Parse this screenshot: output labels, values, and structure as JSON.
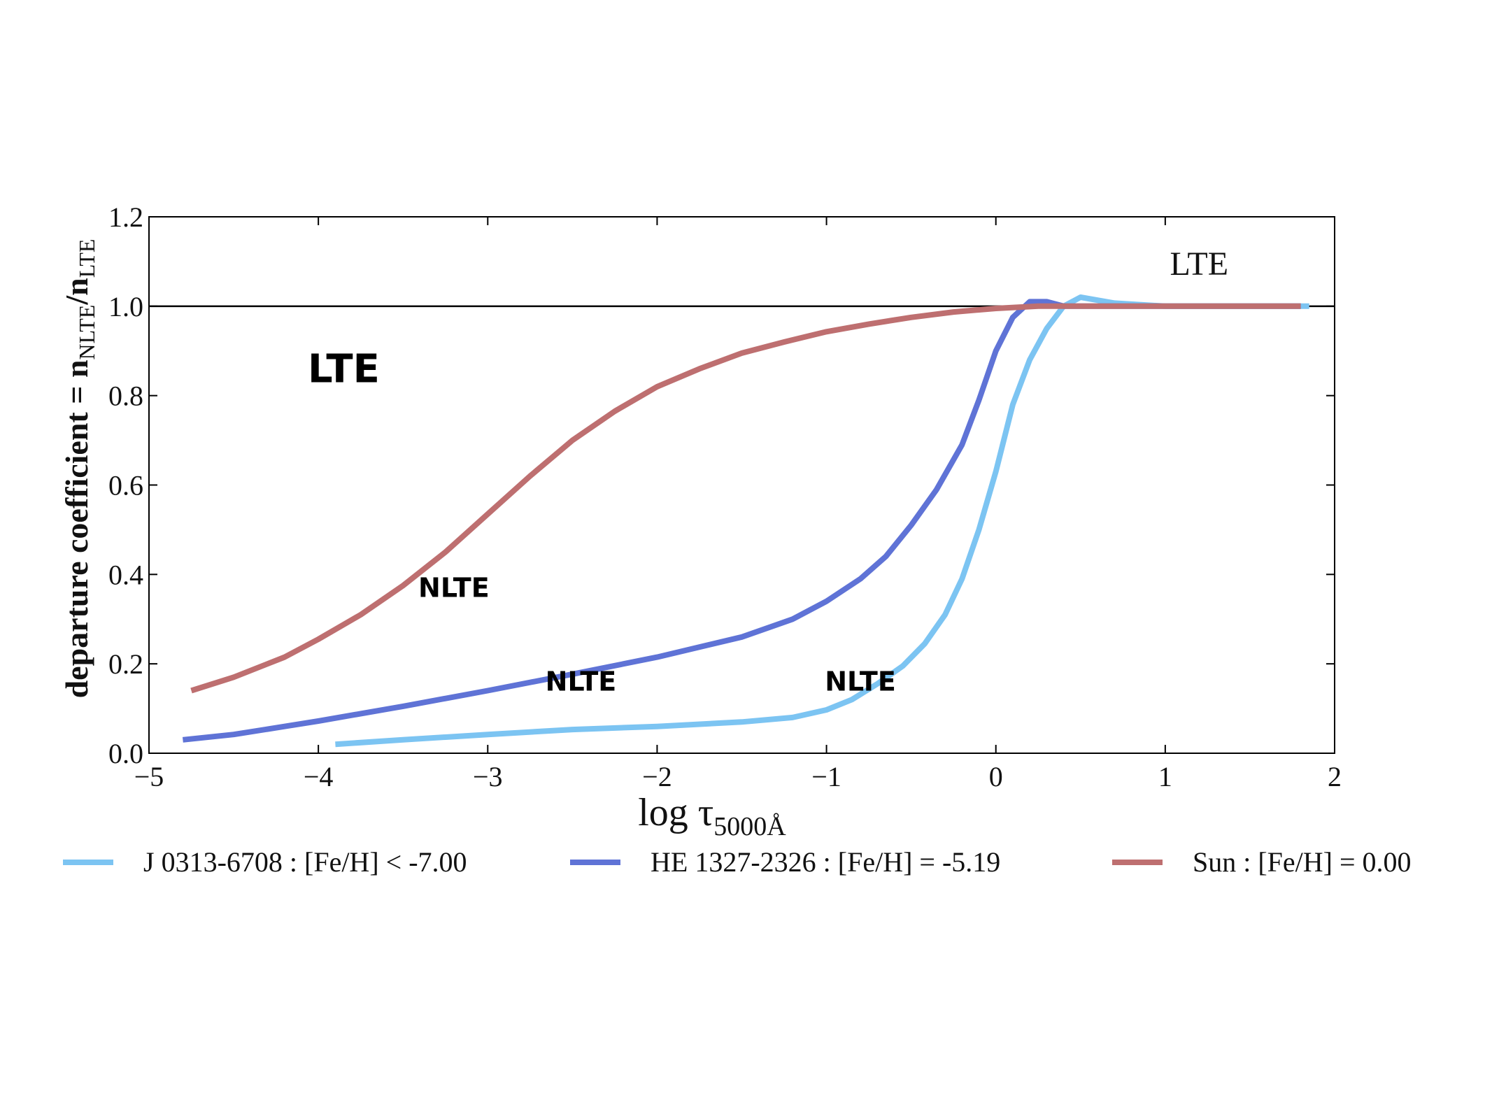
{
  "chart_data": {
    "type": "line",
    "xlabel": "log τ",
    "xlabel_sub": "5000Å",
    "ylabel_main": "departure coefficient = n",
    "ylabel_sub1": "NLTE",
    "ylabel_mid": "/n",
    "ylabel_sub2": "LTE",
    "xlim": [
      -5,
      2
    ],
    "ylim": [
      0.0,
      1.2
    ],
    "x_ticks": [
      -5,
      -4,
      -3,
      -2,
      -1,
      0,
      1,
      2
    ],
    "x_tick_labels": [
      "−5",
      "−4",
      "−3",
      "−2",
      "−1",
      "0",
      "1",
      "2"
    ],
    "y_ticks": [
      0.0,
      0.2,
      0.4,
      0.6,
      0.8,
      1.0,
      1.2
    ],
    "y_tick_labels": [
      "0.0",
      "0.2",
      "0.4",
      "0.6",
      "0.8",
      "1.0",
      "1.2"
    ],
    "grid": false,
    "reference_line": {
      "y": 1.0,
      "color": "#000000"
    },
    "legend_position": "bottom",
    "series": [
      {
        "name": "J 0313-6708 : [Fe/H] < -7.00",
        "color": "#7cc4f2",
        "points": [
          [
            -3.9,
            0.02
          ],
          [
            -3.5,
            0.03
          ],
          [
            -3.0,
            0.042
          ],
          [
            -2.5,
            0.053
          ],
          [
            -2.0,
            0.06
          ],
          [
            -1.5,
            0.07
          ],
          [
            -1.2,
            0.08
          ],
          [
            -1.0,
            0.097
          ],
          [
            -0.85,
            0.12
          ],
          [
            -0.7,
            0.155
          ],
          [
            -0.55,
            0.195
          ],
          [
            -0.42,
            0.245
          ],
          [
            -0.3,
            0.31
          ],
          [
            -0.2,
            0.39
          ],
          [
            -0.1,
            0.5
          ],
          [
            0.0,
            0.63
          ],
          [
            0.1,
            0.78
          ],
          [
            0.2,
            0.88
          ],
          [
            0.3,
            0.95
          ],
          [
            0.4,
            1.0
          ],
          [
            0.5,
            1.02
          ],
          [
            0.7,
            1.007
          ],
          [
            1.0,
            1.0
          ],
          [
            1.5,
            1.0
          ],
          [
            1.85,
            1.0
          ]
        ]
      },
      {
        "name": "HE 1327-2326 : [Fe/H] = -5.19",
        "color": "#5f73d6",
        "points": [
          [
            -4.8,
            0.03
          ],
          [
            -4.5,
            0.042
          ],
          [
            -4.2,
            0.06
          ],
          [
            -4.0,
            0.072
          ],
          [
            -3.5,
            0.105
          ],
          [
            -3.0,
            0.14
          ],
          [
            -2.5,
            0.177
          ],
          [
            -2.0,
            0.215
          ],
          [
            -1.5,
            0.26
          ],
          [
            -1.2,
            0.3
          ],
          [
            -1.0,
            0.34
          ],
          [
            -0.8,
            0.39
          ],
          [
            -0.65,
            0.44
          ],
          [
            -0.5,
            0.51
          ],
          [
            -0.35,
            0.59
          ],
          [
            -0.2,
            0.69
          ],
          [
            -0.1,
            0.79
          ],
          [
            0.0,
            0.9
          ],
          [
            0.1,
            0.975
          ],
          [
            0.2,
            1.01
          ],
          [
            0.3,
            1.01
          ],
          [
            0.4,
            1.0
          ],
          [
            0.7,
            1.0
          ],
          [
            1.2,
            1.0
          ],
          [
            1.8,
            1.0
          ]
        ]
      },
      {
        "name": "Sun : [Fe/H] = 0.00",
        "color": "#be6f70",
        "points": [
          [
            -4.75,
            0.14
          ],
          [
            -4.5,
            0.17
          ],
          [
            -4.2,
            0.215
          ],
          [
            -4.0,
            0.255
          ],
          [
            -3.75,
            0.31
          ],
          [
            -3.5,
            0.375
          ],
          [
            -3.25,
            0.45
          ],
          [
            -3.0,
            0.535
          ],
          [
            -2.75,
            0.62
          ],
          [
            -2.5,
            0.7
          ],
          [
            -2.25,
            0.765
          ],
          [
            -2.0,
            0.82
          ],
          [
            -1.75,
            0.86
          ],
          [
            -1.5,
            0.895
          ],
          [
            -1.25,
            0.92
          ],
          [
            -1.0,
            0.943
          ],
          [
            -0.75,
            0.96
          ],
          [
            -0.5,
            0.975
          ],
          [
            -0.25,
            0.987
          ],
          [
            0.0,
            0.995
          ],
          [
            0.25,
            1.0
          ],
          [
            0.5,
            1.0
          ],
          [
            1.0,
            1.0
          ],
          [
            1.5,
            1.0
          ],
          [
            1.8,
            1.0
          ]
        ]
      }
    ],
    "annotations": [
      {
        "text": "LTE",
        "x": -3.85,
        "y": 0.83,
        "style": "bold-large"
      },
      {
        "text": "NLTE",
        "x": -3.2,
        "y": 0.35,
        "style": "bold"
      },
      {
        "text": "NLTE",
        "x": -2.45,
        "y": 0.14,
        "style": "bold"
      },
      {
        "text": "NLTE",
        "x": -0.8,
        "y": 0.14,
        "style": "bold"
      },
      {
        "text": "LTE",
        "x": 1.2,
        "y": 1.07,
        "style": "serif"
      }
    ]
  }
}
